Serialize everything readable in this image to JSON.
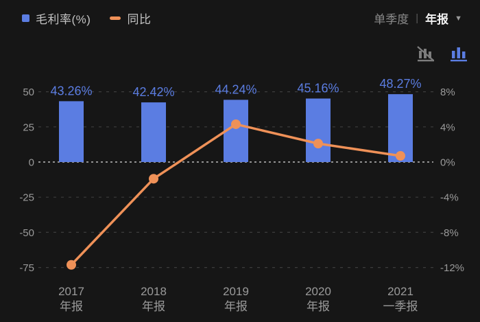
{
  "colors": {
    "background": "#161616",
    "bar": "#5b7de2",
    "bar_label": "#5b7de2",
    "line": "#ef9158",
    "grid": "#3d3d3d",
    "zero_line": "#949494",
    "axis_text": "#9a9a9a",
    "legend_text": "#c3c3c3",
    "tab_inactive": "#8a8a8a",
    "tab_active": "#f2f2f2",
    "icon_inactive": "#7d7d7d",
    "icon_active": "#5b7de2"
  },
  "legend": {
    "bar_label": "毛利率(%)",
    "line_label": "同比"
  },
  "period_toggle": {
    "separator": "|",
    "options": [
      {
        "label": "单季度",
        "active": false
      },
      {
        "label": "年报",
        "active": true
      }
    ],
    "caret": "▼"
  },
  "toolbar": {
    "icons": [
      {
        "name": "line-chart-disabled-icon",
        "active": false
      },
      {
        "name": "bar-chart-icon",
        "active": true
      }
    ]
  },
  "chart_data": {
    "type": "bar",
    "subtype": "bar+line dual axis",
    "categories": [
      [
        "2017",
        "年报"
      ],
      [
        "2018",
        "年报"
      ],
      [
        "2019",
        "年报"
      ],
      [
        "2020",
        "年报"
      ],
      [
        "2021",
        "一季报"
      ]
    ],
    "series": [
      {
        "name": "毛利率(%)",
        "type": "bar",
        "axis": "left",
        "values": [
          43.26,
          42.42,
          44.24,
          45.16,
          48.27
        ],
        "labels": [
          "43.26%",
          "42.42%",
          "44.24%",
          "45.16%",
          "48.27%"
        ]
      },
      {
        "name": "同比",
        "type": "line",
        "axis": "right",
        "values": [
          -11.7,
          -1.9,
          4.3,
          2.1,
          0.7
        ]
      }
    ],
    "left_axis": {
      "ticks": [
        50,
        25,
        0,
        -25,
        -50,
        -75
      ],
      "range": [
        -87,
        62
      ]
    },
    "right_axis": {
      "tick_labels": [
        "8%",
        "4%",
        "0%",
        "-4%",
        "-8%",
        "-12%"
      ],
      "tick_values": [
        8,
        4,
        0,
        -4,
        -8,
        -12
      ],
      "range": [
        -13.9,
        9.9
      ]
    },
    "grid": "dashed horizontal",
    "legend_position": "top-left"
  }
}
